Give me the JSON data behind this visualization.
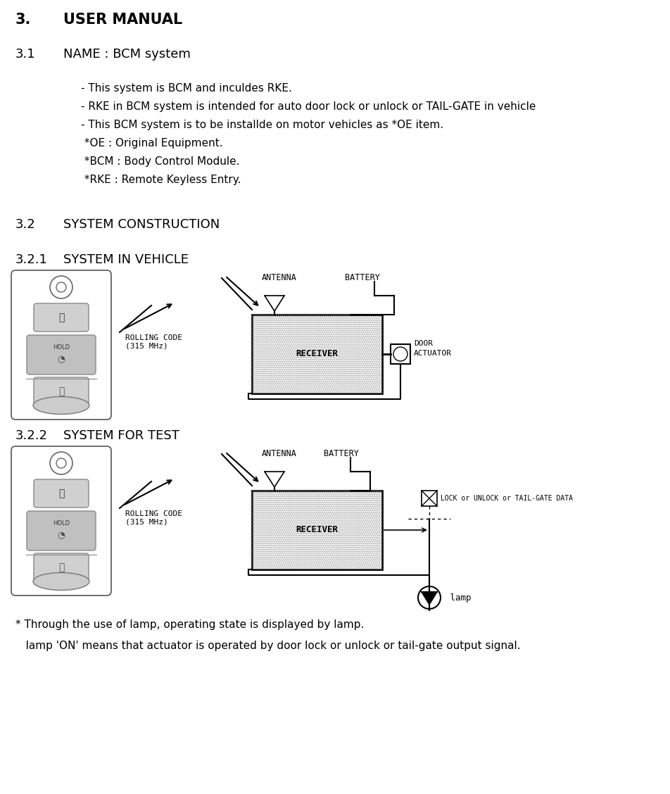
{
  "bg_color": "#ffffff",
  "title_3": "3.",
  "title_3_text": "USER MANUAL",
  "title_31": "3.1",
  "title_31_text": "NAME : BCM system",
  "body_lines": [
    "- This system is BCM and inculdes RKE.",
    "- RKE in BCM system is intended for auto door lock or unlock or TAIL-GATE in vehicle",
    "- This BCM system is to be installde on motor vehicles as *OE item.",
    " *OE : Original Equipment.",
    " *BCM : Body Control Module.",
    " *RKE : Remote Keyless Entry."
  ],
  "title_32": "3.2",
  "title_32_text": "SYSTEM CONSTRUCTION",
  "title_321": "3.2.1",
  "title_321_text": "SYSTEM IN VEHICLE",
  "title_322": "3.2.2",
  "title_322_text": "SYSTEM FOR TEST",
  "footnote1": "* Through the use of lamp, operating state is displayed by lamp.",
  "footnote2": "   lamp 'ON' means that actuator is operated by door lock or unlock or tail-gate output signal.",
  "rolling_code_label": "ROLLING CODE\n(315 MHz)",
  "antenna_label": "ANTENNA",
  "battery_label": "BATTERY",
  "receiver_label": "RECEIVER",
  "door_actuator_label": "DOOR\nACTUATOR",
  "lock_data_label": "LOCK or UNLOCK or TAIL-GATE DATA",
  "lamp_label": " lamp"
}
